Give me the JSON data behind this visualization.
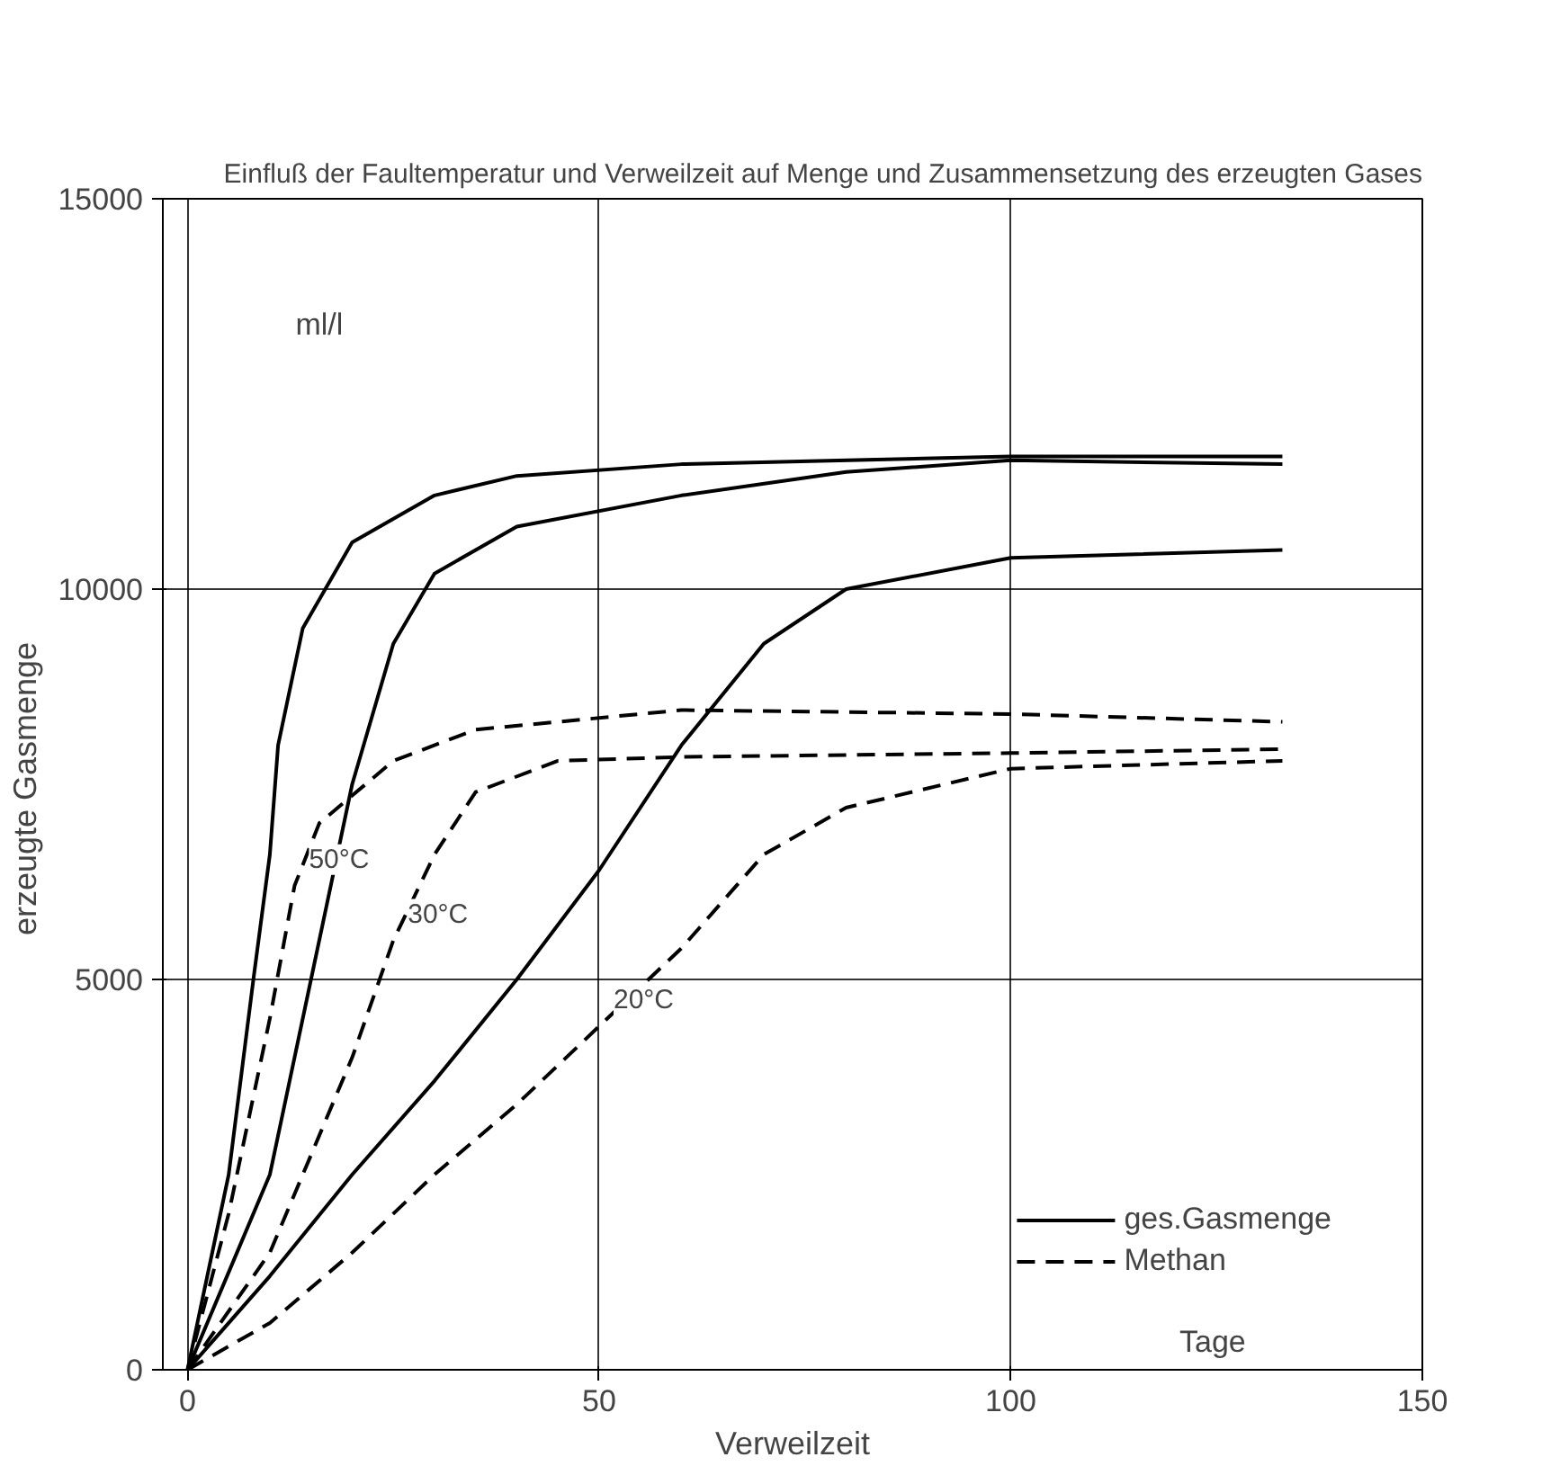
{
  "chart_data": {
    "type": "line",
    "title": "Einfluß der Faultemperatur und Verweilzeit auf Menge und Zusammensetzung des erzeugten Gases",
    "xlabel": "Verweilzeit",
    "ylabel": "erzeugte  Gasmenge",
    "xlim": [
      -3,
      150
    ],
    "ylim": [
      0,
      15000
    ],
    "xticks": [
      0,
      50,
      100,
      150
    ],
    "yticks": [
      0,
      5000,
      10000,
      15000
    ],
    "grid": true,
    "legend": "bottom right",
    "marker": "none",
    "series": [
      {
        "name": "ges.Gasmenge",
        "color": "#000000",
        "line_style": "solid",
        "x": [
          0,
          5,
          8,
          10,
          11,
          14,
          20,
          30,
          40,
          60,
          100,
          133
        ],
        "values": [
          0,
          2500,
          5000,
          6600,
          8000,
          9500,
          10600,
          11200,
          11450,
          11600,
          11700,
          11700
        ]
      },
      {
        "color": "#000000",
        "line_style": "solid",
        "x": [
          0,
          10,
          15,
          20,
          25,
          30,
          40,
          60,
          80,
          100,
          133
        ],
        "values": [
          0,
          2500,
          5000,
          7500,
          9300,
          10200,
          10800,
          11200,
          11500,
          11650,
          11600
        ]
      },
      {
        "color": "#000000",
        "line_style": "solid",
        "x": [
          0,
          10,
          20,
          30,
          40,
          50,
          60,
          70,
          80,
          100,
          133
        ],
        "values": [
          0,
          1200,
          2500,
          3700,
          5000,
          6400,
          8000,
          9300,
          10000,
          10400,
          10500
        ]
      },
      {
        "name": "Methan",
        "color": "#000000",
        "line_style": "dashed",
        "x": [
          0,
          5,
          10,
          13,
          16,
          25,
          35,
          60,
          100,
          133
        ],
        "values": [
          0,
          2000,
          4500,
          6200,
          7000,
          7800,
          8200,
          8450,
          8400,
          8300
        ]
      },
      {
        "color": "#000000",
        "line_style": "dashed",
        "x": [
          0,
          10,
          20,
          25,
          30,
          35,
          45,
          60,
          100,
          133
        ],
        "values": [
          0,
          1500,
          4000,
          5500,
          6600,
          7400,
          7800,
          7850,
          7900,
          7950
        ]
      },
      {
        "color": "#000000",
        "line_style": "dashed",
        "x": [
          0,
          10,
          20,
          30,
          40,
          50,
          60,
          70,
          80,
          100,
          133
        ],
        "values": [
          0,
          600,
          1500,
          2500,
          3400,
          4400,
          5400,
          6600,
          7200,
          7700,
          7800
        ]
      }
    ],
    "annotations": [
      {
        "text": "50°C",
        "x": 13,
        "y": 6200
      },
      {
        "text": "30°C",
        "x": 25,
        "y": 5500
      },
      {
        "text": "20°C",
        "x": 50,
        "y": 4400
      },
      "ml/l",
      "Tage"
    ]
  }
}
